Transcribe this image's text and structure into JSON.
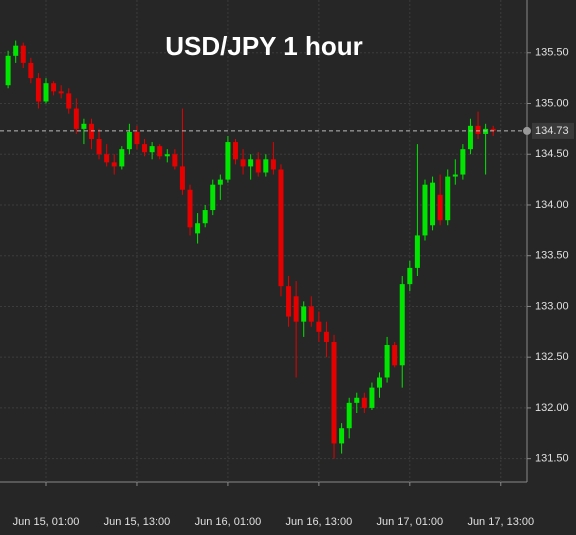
{
  "chart_data": {
    "type": "candlestick",
    "title": "USD/JPY 1 hour",
    "x": [
      -4,
      -3,
      -2,
      -1,
      0,
      1,
      2,
      3,
      4,
      5,
      6,
      7,
      8,
      9,
      10,
      11,
      12,
      13,
      14,
      15,
      16,
      17,
      18,
      19,
      20,
      21,
      22,
      23,
      24,
      25,
      26,
      27,
      28,
      29,
      30,
      31,
      32,
      33,
      34,
      35,
      36,
      37,
      38,
      39,
      40,
      41,
      42,
      43,
      44,
      45,
      46,
      47,
      48,
      49,
      50,
      51,
      52,
      53,
      54,
      55,
      56,
      57,
      58,
      59,
      60
    ],
    "open": [
      135.18,
      135.47,
      135.57,
      135.4,
      135.25,
      135.02,
      135.2,
      135.12,
      135.1,
      134.95,
      134.75,
      134.8,
      134.65,
      134.5,
      134.42,
      134.38,
      134.55,
      134.72,
      134.6,
      134.52,
      134.58,
      134.48,
      134.5,
      134.38,
      134.15,
      133.72,
      133.82,
      133.95,
      134.2,
      134.25,
      134.62,
      134.45,
      134.38,
      134.45,
      134.32,
      134.45,
      134.35,
      133.2,
      133.1,
      132.85,
      133.0,
      132.85,
      132.75,
      132.65,
      131.65,
      131.8,
      132.05,
      132.1,
      132.0,
      132.2,
      132.3,
      132.62,
      132.42,
      133.22,
      133.38,
      133.7,
      133.8,
      134.1,
      133.85,
      134.28,
      134.3,
      134.55,
      134.78,
      134.7,
      134.75
    ],
    "high": [
      135.52,
      135.62,
      135.6,
      135.45,
      135.3,
      135.25,
      135.22,
      135.18,
      135.15,
      135.05,
      134.85,
      134.85,
      134.75,
      134.6,
      134.5,
      134.58,
      134.8,
      134.78,
      134.65,
      134.62,
      134.6,
      134.55,
      134.55,
      134.95,
      134.2,
      133.92,
      134.0,
      134.25,
      134.3,
      134.68,
      134.65,
      134.55,
      134.5,
      134.52,
      134.5,
      134.62,
      134.4,
      133.3,
      133.25,
      133.05,
      133.1,
      132.95,
      132.85,
      132.72,
      131.85,
      132.1,
      132.15,
      132.15,
      132.25,
      132.35,
      132.7,
      132.65,
      133.3,
      133.45,
      134.6,
      134.25,
      134.28,
      134.3,
      134.35,
      134.45,
      134.6,
      134.85,
      134.92,
      134.8,
      134.78
    ],
    "low": [
      135.15,
      135.4,
      135.35,
      135.2,
      134.95,
      135.0,
      135.08,
      135.05,
      134.9,
      134.7,
      134.6,
      134.55,
      134.45,
      134.38,
      134.3,
      134.35,
      134.5,
      134.55,
      134.48,
      134.45,
      134.45,
      134.42,
      134.35,
      134.1,
      133.7,
      133.62,
      133.78,
      133.9,
      134.05,
      134.22,
      134.4,
      134.3,
      134.25,
      134.28,
      134.28,
      134.3,
      133.1,
      132.8,
      132.3,
      132.7,
      132.8,
      132.65,
      132.5,
      131.5,
      131.55,
      131.7,
      131.95,
      131.95,
      131.98,
      132.1,
      132.25,
      132.4,
      132.2,
      133.15,
      133.3,
      133.65,
      133.75,
      133.8,
      133.8,
      134.2,
      134.25,
      134.5,
      134.65,
      134.3,
      134.68
    ],
    "close": [
      135.47,
      135.57,
      135.4,
      135.25,
      135.02,
      135.2,
      135.12,
      135.1,
      134.95,
      134.75,
      134.8,
      134.65,
      134.5,
      134.42,
      134.38,
      134.55,
      134.72,
      134.6,
      134.52,
      134.58,
      134.48,
      134.5,
      134.38,
      134.15,
      133.78,
      133.82,
      133.95,
      134.2,
      134.25,
      134.62,
      134.45,
      134.38,
      134.45,
      134.32,
      134.45,
      134.35,
      133.2,
      132.9,
      132.85,
      133.0,
      132.85,
      132.75,
      132.65,
      131.65,
      131.8,
      132.05,
      132.1,
      132.0,
      132.2,
      132.3,
      132.62,
      132.42,
      133.22,
      133.38,
      133.7,
      134.2,
      134.22,
      133.85,
      134.28,
      134.3,
      134.55,
      134.78,
      134.7,
      134.75,
      134.73
    ],
    "up_color": "#00e600",
    "down_color": "#e60000",
    "last_price": 134.73,
    "xlim": [
      -5.07,
      64.46
    ],
    "xticks": [
      {
        "value": 1,
        "label": "Jun 15, 01:00"
      },
      {
        "value": 13,
        "label": "Jun 15, 13:00"
      },
      {
        "value": 25,
        "label": "Jun 16, 01:00"
      },
      {
        "value": 37,
        "label": "Jun 16, 13:00"
      },
      {
        "value": 49,
        "label": "Jun 17, 01:00"
      },
      {
        "value": 61,
        "label": "Jun 17, 13:00"
      }
    ],
    "ylim": [
      131.27,
      136.02
    ],
    "yticks": [
      {
        "value": 131.5,
        "label": "131.50"
      },
      {
        "value": 132,
        "label": "132.00"
      },
      {
        "value": 132.5,
        "label": "132.50"
      },
      {
        "value": 133,
        "label": "133.00"
      },
      {
        "value": 133.5,
        "label": "133.50"
      },
      {
        "value": 134,
        "label": "134.00"
      },
      {
        "value": 134.5,
        "label": "134.50"
      },
      {
        "value": 135,
        "label": "135.00"
      },
      {
        "value": 135.5,
        "label": "135.50"
      }
    ],
    "grid": true
  }
}
